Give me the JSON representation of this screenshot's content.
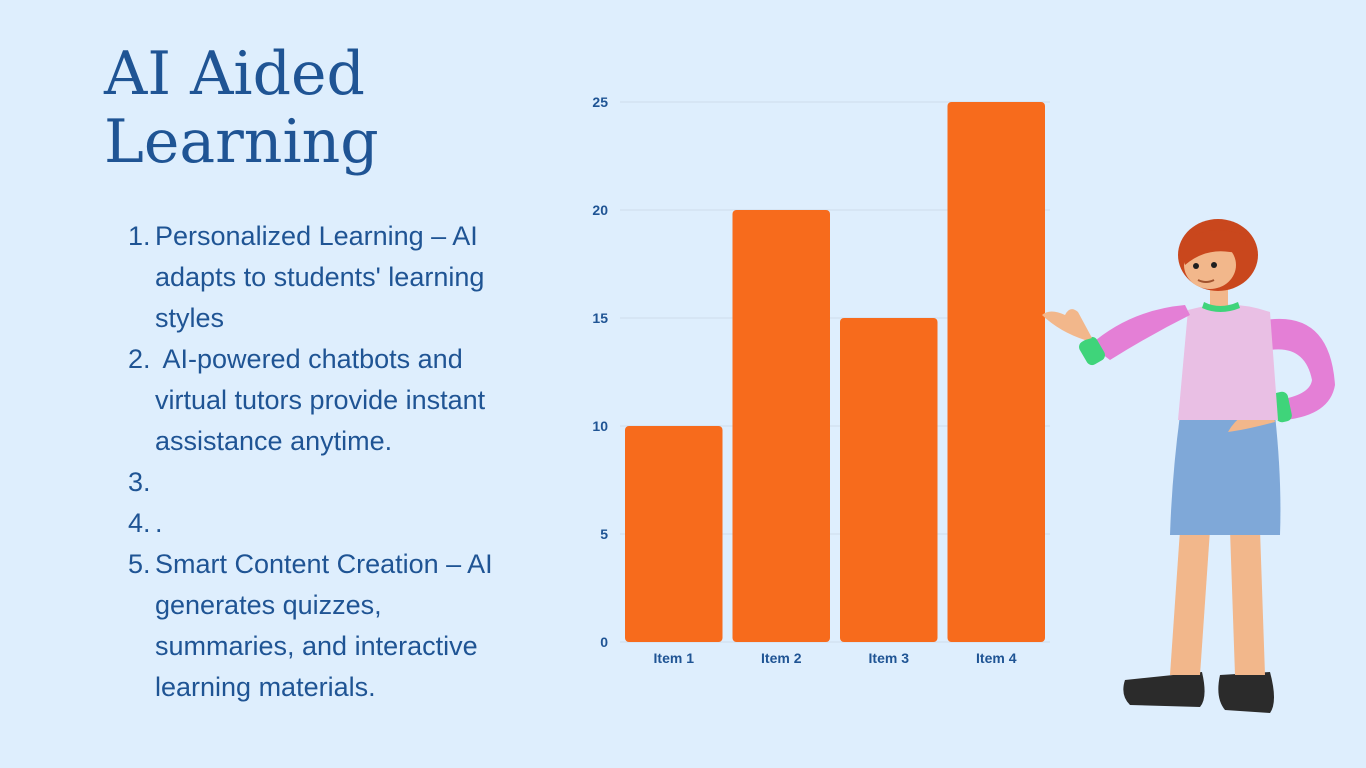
{
  "slide": {
    "title_lines": [
      "AI Aided",
      "Learning"
    ],
    "list_items": [
      {
        "num": "1.",
        "text": "Personalized Learning – AI adapts to students' learning styles"
      },
      {
        "num": "2.",
        "text": " AI-powered chatbots and virtual tutors provide instant assistance anytime."
      },
      {
        "num": "3.",
        "text": ""
      },
      {
        "num": "4.",
        "text": "."
      },
      {
        "num": "5.",
        "text": "Smart Content Creation – AI generates quizzes, summaries, and interactive learning materials."
      }
    ]
  },
  "colors": {
    "background": "#deeefd",
    "title": "#1f5494",
    "bar": "#f76b1c",
    "axis_text": "#1f5494",
    "gridline": "#cfdcea"
  },
  "chart_data": {
    "type": "bar",
    "categories": [
      "Item 1",
      "Item 2",
      "Item 3",
      "Item 4"
    ],
    "values": [
      10,
      20,
      15,
      25
    ],
    "yticks": [
      0,
      5,
      10,
      15,
      20,
      25
    ],
    "ylim": [
      0,
      25
    ],
    "grid": true,
    "legend": "none"
  },
  "illustration": {
    "icon": "presenter-woman-illustration"
  }
}
